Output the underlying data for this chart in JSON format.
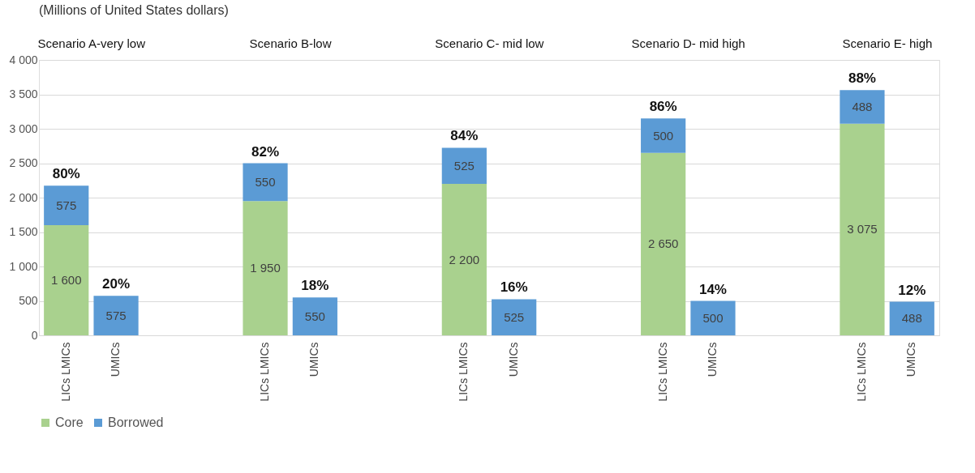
{
  "chart_data": {
    "type": "bar",
    "stacked": true,
    "title": "(Millions of United States dollars)",
    "categories": [
      "LICs LMICs",
      "UMICs",
      null,
      null,
      "LICs LMICs",
      "UMICs",
      null,
      null,
      "LICs LMICs",
      "UMICs",
      null,
      null,
      "LICs LMICs",
      "UMICs",
      null,
      null,
      "LICs LMICs",
      "UMICs"
    ],
    "series": [
      {
        "name": "Core",
        "color": "#a9d18e",
        "values": [
          1600,
          null,
          null,
          null,
          1950,
          null,
          null,
          null,
          2200,
          null,
          null,
          null,
          2650,
          null,
          null,
          null,
          3075,
          null
        ]
      },
      {
        "name": "Borrowed",
        "color": "#5b9bd5",
        "values": [
          575,
          575,
          null,
          null,
          550,
          550,
          null,
          null,
          525,
          525,
          null,
          null,
          500,
          500,
          null,
          null,
          488,
          488
        ]
      }
    ],
    "annotations": [
      "Scenario A-very low",
      "Scenario B-low",
      "Scenario C- mid low",
      "Scenario D- mid high",
      "Scenario E-  high",
      "80%",
      "20%",
      "82%",
      "18%",
      "84%",
      "16%",
      "86%",
      "14%",
      "88%",
      "12%"
    ],
    "ylim": [
      0,
      4000
    ],
    "yticks": [
      0,
      500,
      {
        "value": 1000,
        "label": "1 000"
      },
      {
        "value": 1500,
        "label": "1 500"
      },
      {
        "value": 2000,
        "label": "2 000"
      },
      {
        "value": 2500,
        "label": "2 500"
      },
      {
        "value": 3000,
        "label": "3 000"
      },
      {
        "value": 3500,
        "label": "3 500"
      },
      {
        "value": 4000,
        "label": "4 000"
      }
    ],
    "grid": "y",
    "data_labels": true,
    "legend": "bottom"
  }
}
